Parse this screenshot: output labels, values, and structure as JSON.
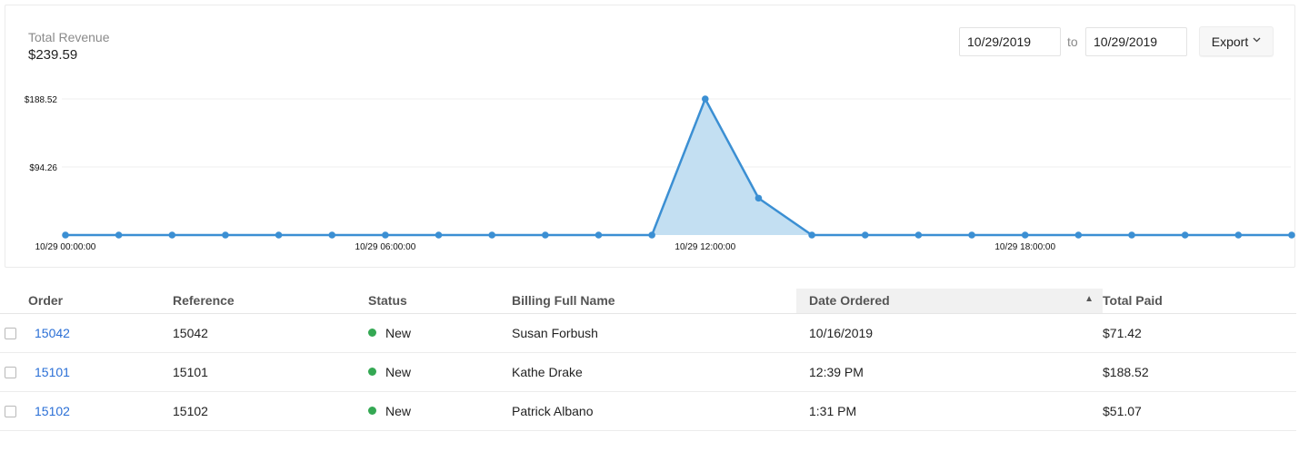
{
  "revenue": {
    "label": "Total Revenue",
    "value": "$239.59"
  },
  "filters": {
    "date_from": "10/29/2019",
    "to_label": "to",
    "date_to": "10/29/2019",
    "export_label": "Export"
  },
  "colors": {
    "accent": "#3b8fd3",
    "area_fill": "#c3dff2",
    "link": "#2a6fd6",
    "status_new": "#34a853"
  },
  "chart_data": {
    "type": "area",
    "title": "",
    "xlabel": "",
    "ylabel": "",
    "x_tick_labels": [
      "10/29 00:00:00",
      "10/29 06:00:00",
      "10/29 12:00:00",
      "10/29 18:00:00"
    ],
    "y_tick_labels": [
      "$188.52",
      "$94.26"
    ],
    "ylim": [
      0,
      188.52
    ],
    "grid": true,
    "series": [
      {
        "x": [
          0,
          1,
          2,
          3,
          4,
          5,
          6,
          7,
          8,
          9,
          10,
          11,
          12,
          13,
          14,
          15,
          16,
          17,
          18,
          19,
          20,
          21,
          22,
          23
        ],
        "values": [
          0,
          0,
          0,
          0,
          0,
          0,
          0,
          0,
          0,
          0,
          0,
          0,
          188.52,
          51.07,
          0,
          0,
          0,
          0,
          0,
          0,
          0,
          0,
          0,
          0
        ]
      }
    ]
  },
  "table": {
    "columns": [
      "Order",
      "Reference",
      "Status",
      "Billing Full Name",
      "Date Ordered",
      "Total Paid"
    ],
    "sort_indicator": "▲",
    "rows": [
      {
        "order": "15042",
        "reference": "15042",
        "status": "New",
        "name": "Susan Forbush",
        "date": "10/16/2019",
        "paid": "$71.42"
      },
      {
        "order": "15101",
        "reference": "15101",
        "status": "New",
        "name": "Kathe Drake",
        "date": "12:39 PM",
        "paid": "$188.52"
      },
      {
        "order": "15102",
        "reference": "15102",
        "status": "New",
        "name": "Patrick Albano",
        "date": "1:31 PM",
        "paid": "$51.07"
      }
    ]
  }
}
